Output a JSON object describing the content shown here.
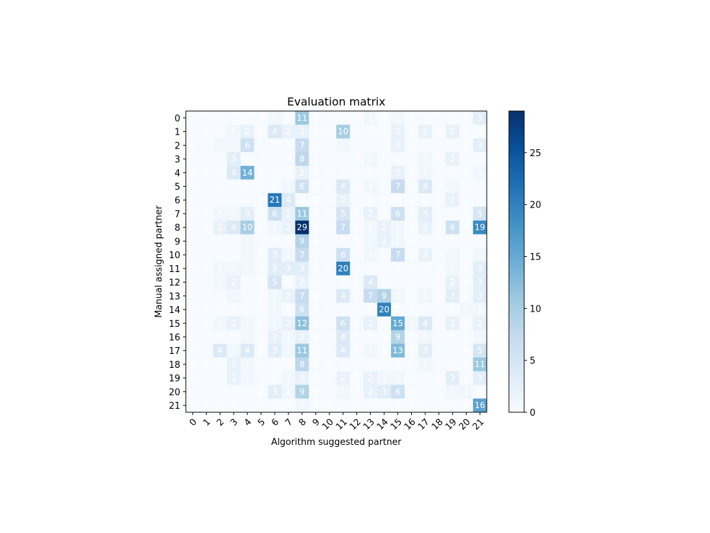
{
  "chart_data": {
    "type": "heatmap",
    "title": "Evaluation matrix",
    "xlabel": "Algorithm suggested partner",
    "ylabel": "Manual assigned partner",
    "x_categories": [
      "0",
      "1",
      "2",
      "3",
      "4",
      "5",
      "6",
      "7",
      "8",
      "9",
      "10",
      "11",
      "12",
      "13",
      "14",
      "15",
      "16",
      "17",
      "18",
      "19",
      "20",
      "21"
    ],
    "y_categories": [
      "0",
      "1",
      "2",
      "3",
      "4",
      "5",
      "6",
      "7",
      "8",
      "9",
      "10",
      "11",
      "12",
      "13",
      "14",
      "15",
      "16",
      "17",
      "18",
      "19",
      "20",
      "21"
    ],
    "colormap": "Blues",
    "vmin": 0,
    "vmax": 29,
    "colorbar_ticks": [
      0,
      5,
      10,
      15,
      20,
      25
    ],
    "values": [
      [
        0,
        0,
        0,
        0,
        0,
        0,
        1,
        0,
        11,
        0,
        0,
        0,
        0,
        1,
        0,
        1,
        0,
        0,
        0,
        0,
        0,
        3
      ],
      [
        0,
        0,
        0,
        1,
        2,
        0,
        4,
        2,
        2,
        0,
        0,
        10,
        0,
        0,
        0,
        2,
        0,
        2,
        0,
        2,
        0,
        0
      ],
      [
        0,
        0,
        1,
        1,
        6,
        0,
        0,
        0,
        7,
        0,
        0,
        1,
        0,
        0,
        0,
        2,
        0,
        0,
        0,
        0,
        0,
        3
      ],
      [
        0,
        0,
        0,
        3,
        0,
        0,
        0,
        0,
        8,
        0,
        0,
        0,
        0,
        1,
        0,
        0,
        0,
        1,
        0,
        2,
        0,
        0
      ],
      [
        0,
        0,
        0,
        4,
        14,
        0,
        0,
        0,
        2,
        0,
        0,
        0,
        0,
        0,
        0,
        2,
        0,
        1,
        0,
        0,
        0,
        1
      ],
      [
        0,
        0,
        0,
        0,
        0,
        0,
        0,
        1,
        6,
        0,
        0,
        4,
        0,
        1,
        0,
        7,
        0,
        4,
        0,
        1,
        0,
        0
      ],
      [
        0,
        0,
        0,
        0,
        0,
        0,
        21,
        4,
        0,
        0,
        0,
        2,
        0,
        0,
        0,
        0,
        0,
        0,
        0,
        2,
        0,
        0
      ],
      [
        0,
        0,
        1,
        1,
        3,
        0,
        6,
        2,
        11,
        0,
        0,
        5,
        0,
        2,
        0,
        6,
        0,
        3,
        0,
        0,
        0,
        5
      ],
      [
        0,
        0,
        2,
        4,
        10,
        0,
        1,
        2,
        29,
        0,
        0,
        7,
        0,
        1,
        2,
        1,
        0,
        2,
        0,
        6,
        0,
        19
      ],
      [
        0,
        0,
        0,
        0,
        1,
        0,
        0,
        0,
        9,
        0,
        0,
        0,
        0,
        1,
        2,
        1,
        0,
        0,
        0,
        0,
        0,
        0
      ],
      [
        0,
        0,
        0,
        0,
        1,
        0,
        3,
        1,
        7,
        0,
        0,
        6,
        0,
        1,
        0,
        7,
        0,
        2,
        0,
        1,
        0,
        1
      ],
      [
        0,
        0,
        1,
        1,
        1,
        0,
        3,
        3,
        3,
        0,
        0,
        20,
        0,
        0,
        0,
        0,
        0,
        0,
        0,
        1,
        0,
        3
      ],
      [
        0,
        0,
        1,
        2,
        0,
        0,
        5,
        0,
        2,
        0,
        0,
        0,
        0,
        4,
        0,
        0,
        0,
        0,
        0,
        2,
        0,
        3
      ],
      [
        0,
        0,
        0,
        1,
        0,
        0,
        1,
        2,
        7,
        0,
        0,
        4,
        0,
        7,
        9,
        1,
        0,
        1,
        0,
        3,
        0,
        3
      ],
      [
        0,
        0,
        0,
        0,
        0,
        0,
        1,
        0,
        6,
        0,
        0,
        0,
        0,
        0,
        20,
        0,
        0,
        0,
        0,
        0,
        1,
        1
      ],
      [
        0,
        0,
        1,
        2,
        1,
        0,
        1,
        2,
        12,
        0,
        0,
        6,
        0,
        2,
        0,
        15,
        1,
        4,
        0,
        2,
        0,
        2
      ],
      [
        0,
        0,
        0,
        0,
        1,
        0,
        2,
        1,
        2,
        0,
        0,
        4,
        0,
        0,
        0,
        9,
        0,
        1,
        0,
        0,
        0,
        1
      ],
      [
        0,
        0,
        4,
        1,
        4,
        0,
        3,
        1,
        11,
        0,
        0,
        4,
        0,
        1,
        0,
        13,
        0,
        3,
        0,
        0,
        0,
        5
      ],
      [
        0,
        0,
        0,
        2,
        1,
        0,
        0,
        0,
        8,
        0,
        0,
        0,
        0,
        0,
        0,
        0,
        0,
        1,
        0,
        0,
        0,
        11
      ],
      [
        0,
        0,
        0,
        2,
        1,
        0,
        0,
        1,
        2,
        0,
        0,
        2,
        0,
        2,
        1,
        1,
        0,
        0,
        0,
        3,
        0,
        3
      ],
      [
        0,
        0,
        0,
        0,
        0,
        0,
        3,
        1,
        9,
        0,
        0,
        1,
        0,
        2,
        3,
        6,
        0,
        0,
        0,
        1,
        1,
        0
      ],
      [
        0,
        0,
        0,
        0,
        0,
        0,
        0,
        0,
        1,
        0,
        0,
        0,
        0,
        0,
        0,
        0,
        0,
        0,
        0,
        0,
        0,
        16
      ]
    ]
  }
}
